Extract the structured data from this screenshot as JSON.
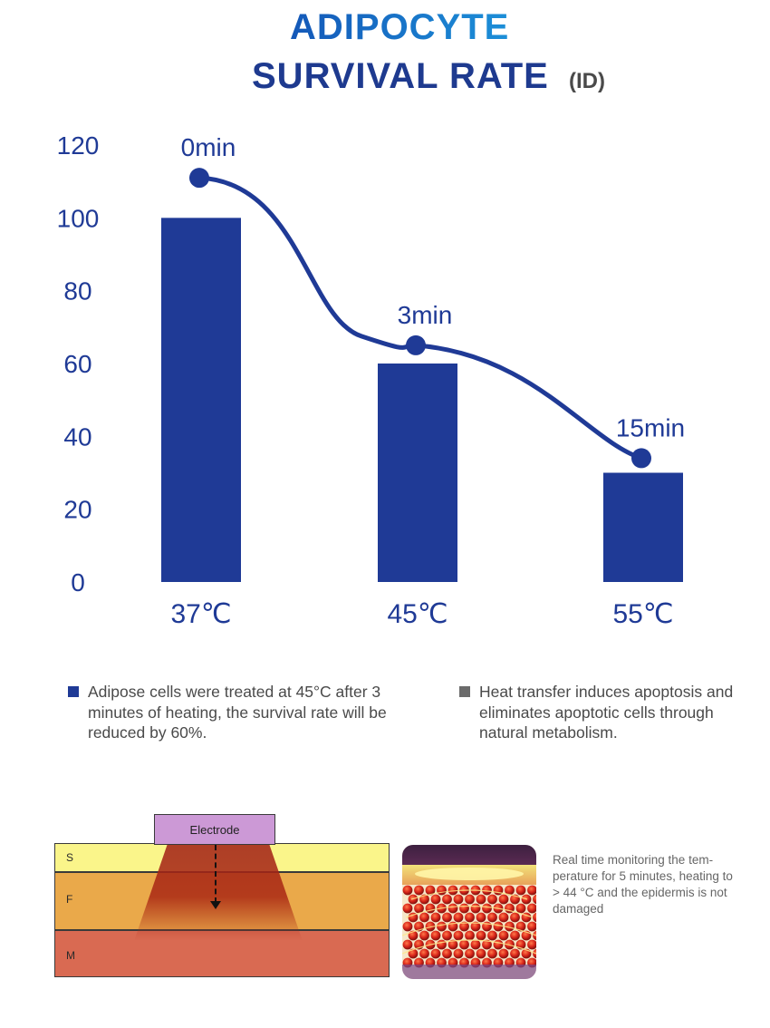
{
  "title": {
    "line1": "ADIPOCYTE",
    "line2": "SURVIVAL RATE",
    "suffix": "(ID)"
  },
  "colors": {
    "bar": "#1f3a96",
    "curve": "#1f3a96",
    "axis_text": "#1f3a96",
    "legend_gray": "#6b6b6b"
  },
  "chart_data": {
    "type": "bar",
    "categories": [
      "37℃",
      "45℃",
      "55℃"
    ],
    "values": [
      100,
      60,
      30
    ],
    "ylim": [
      0,
      120
    ],
    "yticks": [
      0,
      20,
      40,
      60,
      80,
      100,
      120
    ],
    "grid": false,
    "xlabel": "",
    "ylabel": "",
    "overlay_line": {
      "type": "line",
      "points": [
        {
          "category": "37℃",
          "value": 111,
          "label": "0min"
        },
        {
          "category": "45℃",
          "value": 65,
          "label": "3min"
        },
        {
          "category": "55℃",
          "value": 34,
          "label": "15min"
        }
      ]
    }
  },
  "legend": [
    {
      "text": "Adipose cells were treated at 45°C after 3 minutes of heating, the survival rate will be reduced by 60%."
    },
    {
      "text": "Heat transfer induces apoptosis and eliminates apoptotic cells through natural metabolism."
    }
  ],
  "diagram": {
    "electrode_label": "Electrode",
    "layers": [
      "S",
      "F",
      "M"
    ]
  },
  "tissue_image": {
    "icon": "heated-fat-tissue-illustration"
  },
  "caption": "Real time monitoring the tem-perature for 5 minutes, heating to > 44 °C and the epidermis is not damaged"
}
